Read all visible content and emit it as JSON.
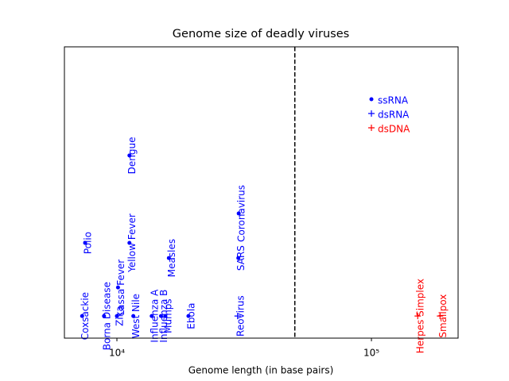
{
  "chart_data": {
    "type": "scatter",
    "title": "Genome size of deadly viruses",
    "xlabel": "Genome length (in base pairs)",
    "xscale": "log",
    "xlim": [
      6220,
      219000
    ],
    "xticks": [
      {
        "value": 10000,
        "label": "10⁴"
      },
      {
        "value": 100000,
        "label": "10⁵"
      }
    ],
    "ylim": [
      0,
      100
    ],
    "yticks": [],
    "vline": 50000,
    "legend": "upper right",
    "series": [
      {
        "name": "ssRNA",
        "color": "#0000ff",
        "marker": "dot",
        "labels": [
          "Coxsackie",
          "Polio",
          "Borna Disease",
          "Zika",
          "Lassa Fever",
          "Dengue",
          "Yellow Fever",
          "West Nile",
          "Influenza A",
          "Influenza B",
          "Mumps",
          "Measles",
          "Ebola",
          "SARS",
          "Coronavirus"
        ],
        "x": [
          7300,
          7500,
          8900,
          10000,
          10100,
          11200,
          11200,
          11600,
          13700,
          14900,
          15500,
          16000,
          19100,
          30000,
          30100
        ],
        "values": [
          7.6,
          32.7,
          7.6,
          7.6,
          17.4,
          62.7,
          32.7,
          7.6,
          7.6,
          7.6,
          7.6,
          27.5,
          7.6,
          27.5,
          42.8
        ]
      },
      {
        "name": "dsRNA",
        "color": "#0000ff",
        "marker": "plus",
        "labels": [
          "Reovirus"
        ],
        "x": [
          29800
        ],
        "values": [
          7.6
        ]
      },
      {
        "name": "dsDNA",
        "color": "#ff0000",
        "marker": "plus",
        "labels": [
          "Herpes Simplex",
          "Smallpox"
        ],
        "x": [
          152000,
          186000
        ],
        "values": [
          7.6,
          7.6
        ]
      }
    ]
  }
}
